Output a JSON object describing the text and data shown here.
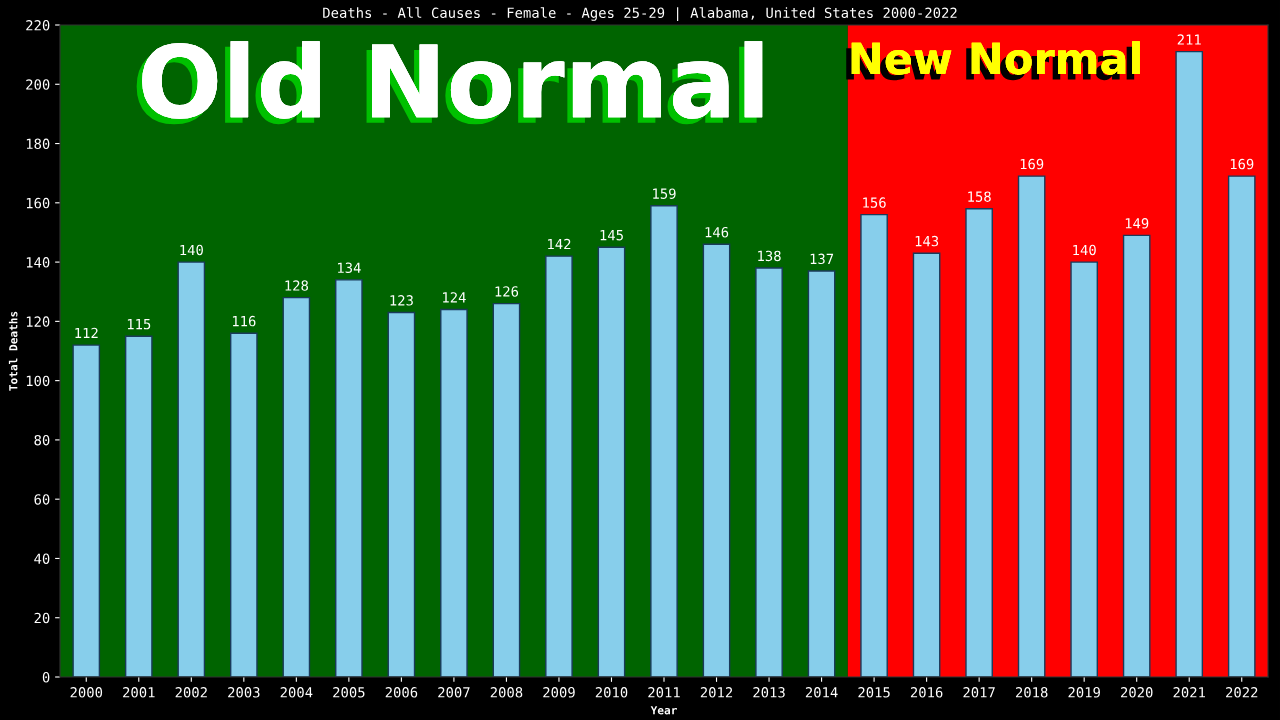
{
  "chart_data": {
    "type": "bar",
    "title": "Deaths - All Causes - Female - Ages 25-29 | Alabama, United States 2000-2022",
    "xlabel": "Year",
    "ylabel": "Total Deaths",
    "categories": [
      "2000",
      "2001",
      "2002",
      "2003",
      "2004",
      "2005",
      "2006",
      "2007",
      "2008",
      "2009",
      "2010",
      "2011",
      "2012",
      "2013",
      "2014",
      "2015",
      "2016",
      "2017",
      "2018",
      "2019",
      "2020",
      "2021",
      "2022"
    ],
    "values": [
      112,
      115,
      140,
      116,
      128,
      134,
      123,
      124,
      126,
      142,
      145,
      159,
      146,
      138,
      137,
      156,
      143,
      158,
      169,
      140,
      149,
      211,
      169
    ],
    "color": "#87ceeb",
    "ylim": [
      0,
      220
    ],
    "yticks": [
      0,
      20,
      40,
      60,
      80,
      100,
      120,
      140,
      160,
      180,
      200,
      220
    ],
    "data_labels": true,
    "grid": false,
    "legend": false,
    "bands": [
      {
        "axis": "x",
        "from": "2000",
        "to": "2014",
        "label": "Old Normal",
        "color": "#006400"
      },
      {
        "axis": "x",
        "from": "2015",
        "to": "2022",
        "label": "New Normal",
        "color": "#ff0000"
      }
    ]
  }
}
